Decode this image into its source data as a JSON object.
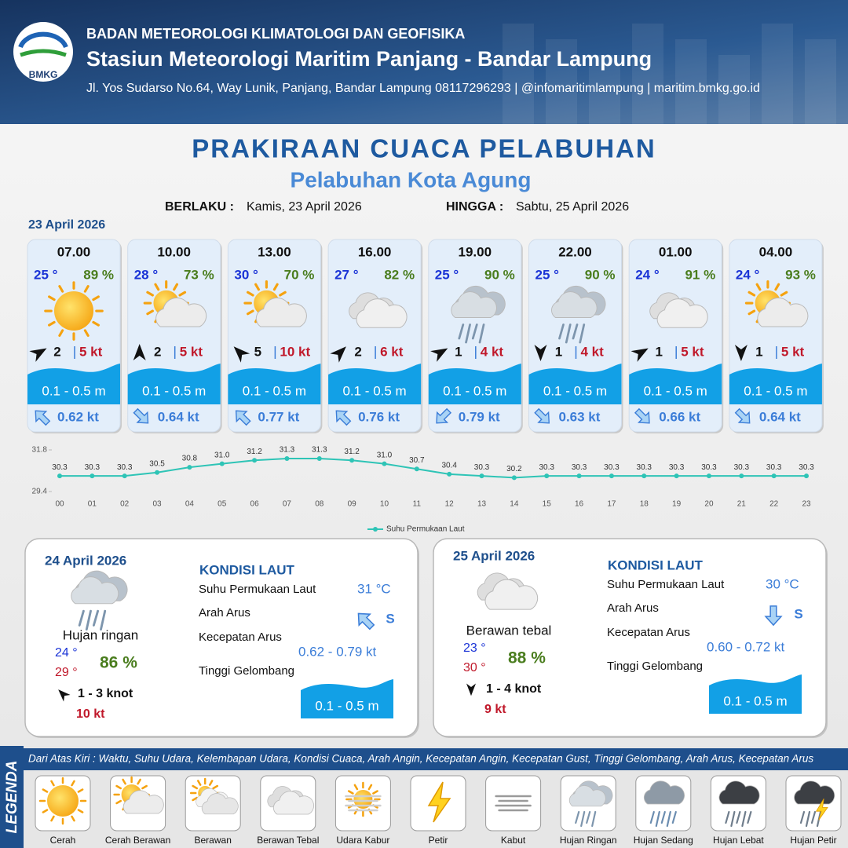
{
  "header": {
    "logo": "BMKG",
    "org": "BADAN METEOROLOGI KLIMATOLOGI DAN GEOFISIKA",
    "station": "Stasiun Meteorologi Maritim Panjang - Bandar Lampung",
    "address": "Jl. Yos Sudarso No.64, Way Lunik, Panjang, Bandar Lampung 08117296293 | @infomaritimlampung | maritim.bmkg.go.id"
  },
  "title": "PRAKIRAAN CUACA PELABUHAN",
  "subtitle": "Pelabuhan Kota Agung",
  "valid": {
    "from_label": "BERLAKU :",
    "from": "Kamis, 23 April 2026",
    "to_label": "HINGGA :",
    "to": "Sabtu, 25 April 2026"
  },
  "day1": {
    "date": "23 April 2026",
    "forecasts": [
      {
        "time": "07.00",
        "temp": "25 °",
        "humidity": "89 %",
        "wind": "2",
        "gust": "5 kt",
        "wave": "0.1 - 0.5 m",
        "current": "0.62 kt"
      },
      {
        "time": "10.00",
        "temp": "28 °",
        "humidity": "73 %",
        "wind": "2",
        "gust": "5 kt",
        "wave": "0.1 - 0.5 m",
        "current": "0.64 kt"
      },
      {
        "time": "13.00",
        "temp": "30 °",
        "humidity": "70 %",
        "wind": "5",
        "gust": "10 kt",
        "wave": "0.1 - 0.5 m",
        "current": "0.77 kt"
      },
      {
        "time": "16.00",
        "temp": "27 °",
        "humidity": "82 %",
        "wind": "2",
        "gust": "6 kt",
        "wave": "0.1 - 0.5 m",
        "current": "0.76 kt"
      },
      {
        "time": "19.00",
        "temp": "25 °",
        "humidity": "90 %",
        "wind": "1",
        "gust": "4 kt",
        "wave": "0.1 - 0.5 m",
        "current": "0.79 kt"
      },
      {
        "time": "22.00",
        "temp": "25 °",
        "humidity": "90 %",
        "wind": "1",
        "gust": "4 kt",
        "wave": "0.1 - 0.5 m",
        "current": "0.63 kt"
      },
      {
        "time": "01.00",
        "temp": "24 °",
        "humidity": "91 %",
        "wind": "1",
        "gust": "5 kt",
        "wave": "0.1 - 0.5 m",
        "current": "0.66 kt"
      },
      {
        "time": "04.00",
        "temp": "24 °",
        "humidity": "93 %",
        "wind": "1",
        "gust": "5 kt",
        "wave": "0.1 - 0.5 m",
        "current": "0.64 kt"
      }
    ]
  },
  "chart_data": {
    "type": "line",
    "categories": [
      "00",
      "01",
      "02",
      "03",
      "04",
      "05",
      "06",
      "07",
      "08",
      "09",
      "10",
      "11",
      "12",
      "13",
      "14",
      "15",
      "16",
      "17",
      "18",
      "19",
      "20",
      "21",
      "22",
      "23"
    ],
    "series": [
      {
        "name": "Suhu Permukaan Laut",
        "color": "#2ec4b6",
        "values": [
          30.3,
          30.3,
          30.3,
          30.5,
          30.8,
          31.0,
          31.2,
          31.3,
          31.3,
          31.2,
          31.0,
          30.7,
          30.4,
          30.3,
          30.2,
          30.3,
          30.3,
          30.3,
          30.3,
          30.3,
          30.3,
          30.3,
          30.3,
          30.3
        ],
        "value_labels": [
          "30.3",
          "30.3",
          "30.3",
          "30.5",
          "30.8",
          "31.0",
          "31.2",
          "31.3",
          "31.3",
          "31.2",
          "31.0",
          "30.7",
          "30.4",
          "30.3",
          "30.2",
          "30.3",
          "30.3",
          "30.3",
          "30.3",
          "30.3",
          "30.3",
          "30.3",
          "30.3",
          "30.3"
        ]
      }
    ],
    "ylim": [
      29.4,
      31.8
    ],
    "yticks": [
      29.4,
      31.8
    ],
    "legend": "bottom"
  },
  "days": [
    {
      "date": "24 April 2026",
      "condition": "Hujan ringan",
      "temp_min": "24 °",
      "temp_max": "29 °",
      "humidity": "86 %",
      "wind": "1 - 3 knot",
      "gust": "10 kt",
      "sea": {
        "heading": "KONDISI LAUT",
        "sst_label": "Suhu Permukaan Laut",
        "sst": "31 °C",
        "dir_label": "Arah Arus",
        "dir": "S",
        "speed_label": "Kecepatan Arus",
        "speed": "0.62 - 0.79 kt",
        "wave_label": "Tinggi Gelombang",
        "wave": "0.1 - 0.5 m"
      }
    },
    {
      "date": "25 April 2026",
      "condition": "Berawan tebal",
      "temp_min": "23 °",
      "temp_max": "30 °",
      "humidity": "88 %",
      "wind": "1 - 4 knot",
      "gust": "9 kt",
      "sea": {
        "heading": "KONDISI LAUT",
        "sst_label": "Suhu Permukaan Laut",
        "sst": "30 °C",
        "dir_label": "Arah Arus",
        "dir": "S",
        "speed_label": "Kecepatan Arus",
        "speed": "0.60 -  0.72 kt",
        "wave_label": "Tinggi Gelombang",
        "wave": "0.1 - 0.5 m"
      }
    }
  ],
  "legend": {
    "title": "LEGENDA",
    "description": "Dari Atas Kiri : Waktu, Suhu Udara, Kelembapan Udara, Kondisi Cuaca, Arah Angin, Kecepatan Angin, Kecepatan Gust, Tinggi Gelombang, Arah Arus, Kecepatan Arus",
    "items": [
      "Cerah",
      "Cerah Berawan",
      "Berawan",
      "Berawan Tebal",
      "Udara Kabur",
      "Petir",
      "Kabut",
      "Hujan Ringan",
      "Hujan Sedang",
      "Hujan Lebat",
      "Hujan Petir"
    ]
  }
}
